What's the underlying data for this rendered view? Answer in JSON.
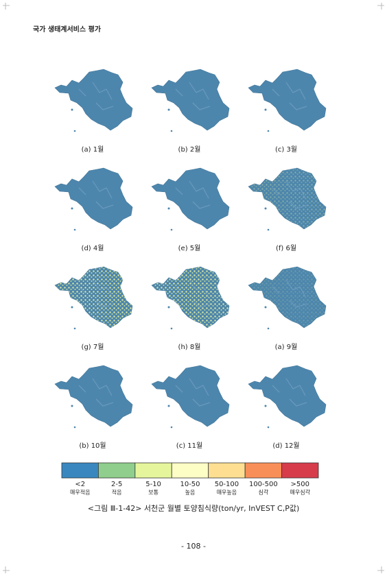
{
  "header": "국가 생태계서비스 평가",
  "panels": [
    "(a) 1월",
    "(b) 2월",
    "(c) 3월",
    "(d) 4월",
    "(e) 5월",
    "(f) 6월",
    "(g) 7월",
    "(h) 8월",
    "(a) 9월",
    "(b) 10월",
    "(c) 11월",
    "(d) 12월"
  ],
  "legend": [
    {
      "range": "<2",
      "label": "매우적음",
      "color": "#3a87c0"
    },
    {
      "range": "2-5",
      "label": "적음",
      "color": "#8fce8c"
    },
    {
      "range": "5-10",
      "label": "보통",
      "color": "#e5f59c"
    },
    {
      "range": "10-50",
      "label": "높음",
      "color": "#fdfec6"
    },
    {
      "range": "50-100",
      "label": "매우높음",
      "color": "#fedf91"
    },
    {
      "range": "100-500",
      "label": "심각",
      "color": "#f98f58"
    },
    {
      "range": ">500",
      "label": "매우심각",
      "color": "#d63c4a"
    }
  ],
  "caption": "<그림 Ⅲ-1-42> 서천군 월별 토양침식량(ton/yr, InVEST C,P값)",
  "page_number": "- 108 -"
}
